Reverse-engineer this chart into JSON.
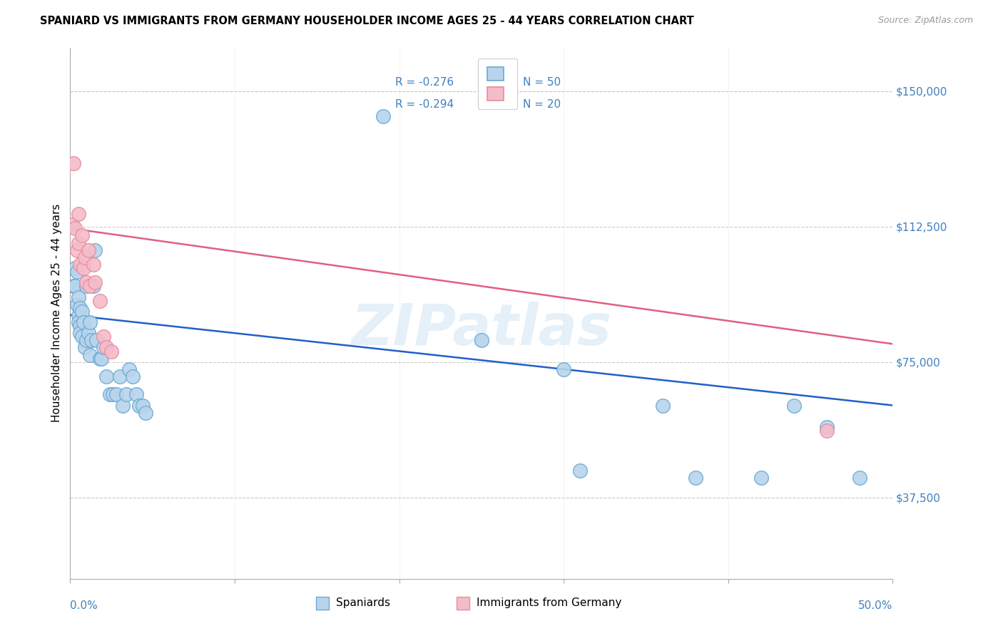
{
  "title": "SPANIARD VS IMMIGRANTS FROM GERMANY HOUSEHOLDER INCOME AGES 25 - 44 YEARS CORRELATION CHART",
  "source": "Source: ZipAtlas.com",
  "ylabel": "Householder Income Ages 25 - 44 years",
  "y_ticks": [
    37500,
    75000,
    112500,
    150000
  ],
  "y_tick_labels": [
    "$37,500",
    "$75,000",
    "$112,500",
    "$150,000"
  ],
  "xlim": [
    0.0,
    0.5
  ],
  "ylim": [
    15000,
    162000
  ],
  "legend_r1": "-0.276",
  "legend_n1": "50",
  "legend_r2": "-0.294",
  "legend_n2": "20",
  "color_spaniard_fill": "#b8d4ec",
  "color_spaniard_edge": "#6aaad4",
  "color_germany_fill": "#f4bcc8",
  "color_germany_edge": "#e88ca0",
  "color_line_spaniard": "#2060c8",
  "color_line_germany": "#e06080",
  "color_axis_blue": "#4080c0",
  "watermark": "ZIPatlas",
  "spaniard_x": [
    0.002,
    0.003,
    0.003,
    0.004,
    0.004,
    0.005,
    0.005,
    0.005,
    0.006,
    0.006,
    0.006,
    0.007,
    0.007,
    0.008,
    0.009,
    0.01,
    0.01,
    0.011,
    0.012,
    0.012,
    0.013,
    0.014,
    0.015,
    0.016,
    0.018,
    0.019,
    0.02,
    0.022,
    0.024,
    0.026,
    0.028,
    0.03,
    0.032,
    0.034,
    0.036,
    0.038,
    0.04,
    0.042,
    0.044,
    0.046,
    0.19,
    0.25,
    0.3,
    0.31,
    0.36,
    0.38,
    0.42,
    0.44,
    0.46,
    0.48
  ],
  "spaniard_y": [
    96000,
    101000,
    96000,
    100000,
    91000,
    93000,
    88000,
    86000,
    90000,
    85000,
    83000,
    89000,
    82000,
    86000,
    79000,
    81000,
    96000,
    83000,
    86000,
    77000,
    81000,
    96000,
    106000,
    81000,
    76000,
    76000,
    79000,
    71000,
    66000,
    66000,
    66000,
    71000,
    63000,
    66000,
    73000,
    71000,
    66000,
    63000,
    63000,
    61000,
    143000,
    81000,
    73000,
    45000,
    63000,
    43000,
    43000,
    63000,
    57000,
    43000
  ],
  "germany_x": [
    0.001,
    0.002,
    0.003,
    0.004,
    0.005,
    0.005,
    0.006,
    0.007,
    0.008,
    0.009,
    0.01,
    0.011,
    0.012,
    0.014,
    0.015,
    0.018,
    0.02,
    0.022,
    0.025,
    0.46
  ],
  "germany_y": [
    113000,
    130000,
    112000,
    106000,
    116000,
    108000,
    102000,
    110000,
    101000,
    104000,
    97000,
    106000,
    96000,
    102000,
    97000,
    92000,
    82000,
    79000,
    78000,
    56000
  ],
  "span_line_x": [
    0.0,
    0.5
  ],
  "span_line_y": [
    88000,
    63000
  ],
  "germ_line_x": [
    0.0,
    0.5
  ],
  "germ_line_y": [
    112000,
    80000
  ]
}
